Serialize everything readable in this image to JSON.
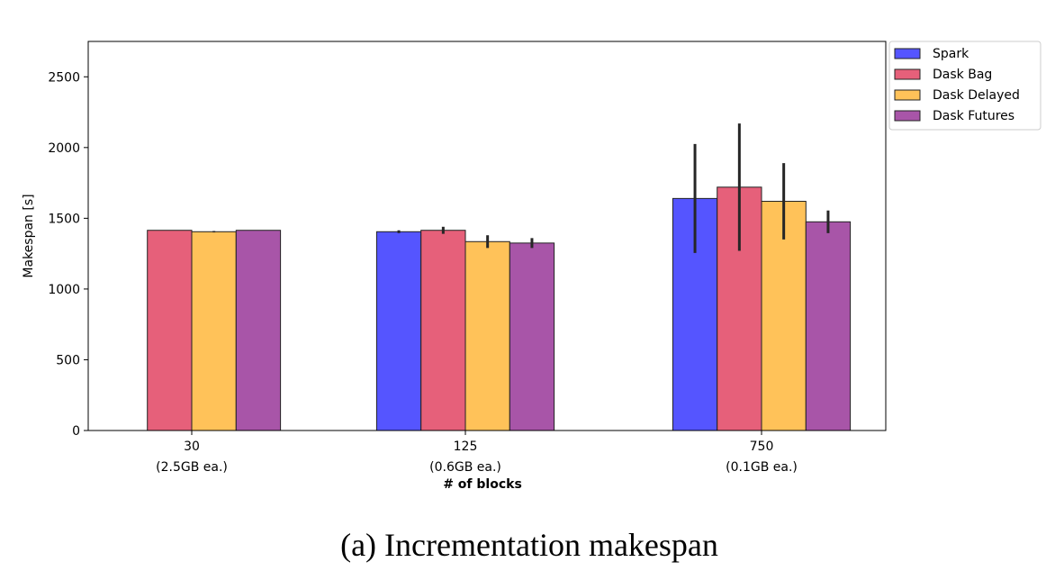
{
  "chart_data": {
    "type": "bar",
    "categories": [
      "30",
      "125",
      "750"
    ],
    "category_sublabels": [
      "(2.5GB ea.)",
      "(0.6GB ea.)",
      "(0.1GB ea.)"
    ],
    "series": [
      {
        "name": "Spark",
        "color": "#5555ff",
        "values": [
          null,
          1405,
          1640
        ],
        "errors": [
          null,
          10,
          385
        ]
      },
      {
        "name": "Dask Bag",
        "color": "#e6607a",
        "values": [
          1415,
          1415,
          1720
        ],
        "errors": [
          null,
          25,
          450
        ]
      },
      {
        "name": "Dask Delayed",
        "color": "#ffc259",
        "values": [
          1405,
          1335,
          1620
        ],
        "errors": [
          5,
          45,
          270
        ]
      },
      {
        "name": "Dask Futures",
        "color": "#a855a8",
        "values": [
          1415,
          1325,
          1475
        ],
        "errors": [
          null,
          35,
          80
        ]
      }
    ],
    "xlabel": "# of blocks",
    "ylabel": "Makespan [s]",
    "ylim": [
      0,
      2750
    ],
    "yticks": [
      0,
      500,
      1000,
      1500,
      2000,
      2500
    ],
    "legend_position": "outside-top-right",
    "grid": false,
    "caption": "(a) Incrementation makespan"
  }
}
